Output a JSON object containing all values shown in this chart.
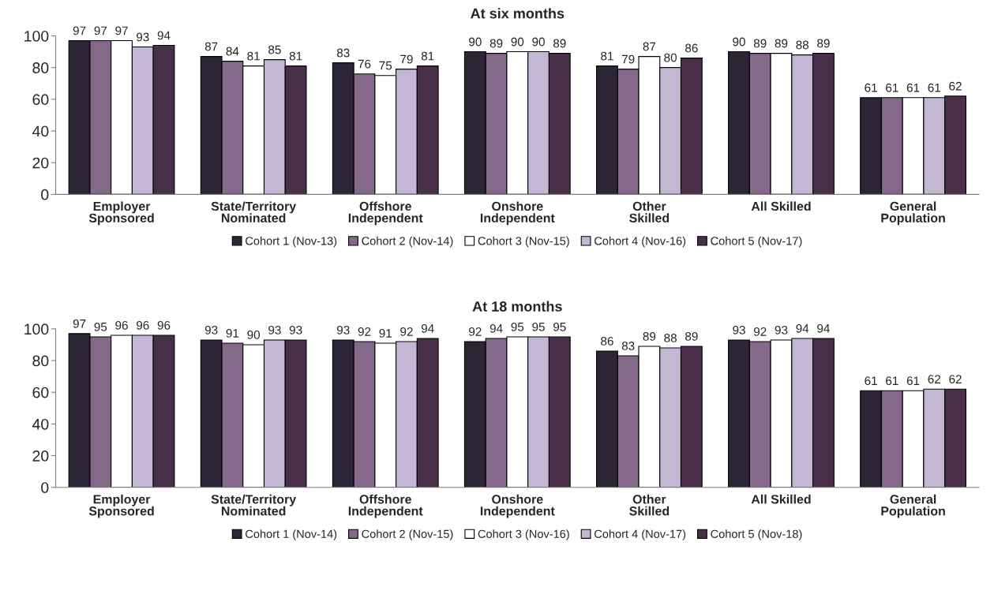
{
  "chart_data": [
    {
      "type": "bar",
      "title": "At six months",
      "categories": [
        "Employer\nSponsored",
        "State/Territory\nNominated",
        "Offshore\nIndependent",
        "Onshore\nIndependent",
        "Other\nSkilled",
        "All Skilled",
        "General\nPopulation"
      ],
      "ylim": [
        0,
        100
      ],
      "yticks": [
        0,
        20,
        40,
        60,
        80,
        100
      ],
      "grid": false,
      "legend": "bottom",
      "data_labels": true,
      "series": [
        {
          "name": "Cohort 1 (Nov-13)",
          "color": "#2b2536",
          "values": [
            97,
            87,
            83,
            90,
            81,
            90,
            61
          ]
        },
        {
          "name": "Cohort 2 (Nov-14)",
          "color": "#85698a",
          "values": [
            97,
            84,
            76,
            89,
            79,
            89,
            61
          ]
        },
        {
          "name": "Cohort 3 (Nov-15)",
          "color": "#ffffff",
          "values": [
            97,
            81,
            75,
            90,
            87,
            89,
            61
          ]
        },
        {
          "name": "Cohort 4 (Nov-16)",
          "color": "#c3b7d3",
          "values": [
            93,
            85,
            79,
            90,
            80,
            88,
            61
          ]
        },
        {
          "name": "Cohort 5 (Nov-17)",
          "color": "#4a2f4a",
          "values": [
            94,
            81,
            81,
            89,
            86,
            89,
            62
          ]
        }
      ]
    },
    {
      "type": "bar",
      "title": "At 18 months",
      "categories": [
        "Employer\nSponsored",
        "State/Territory\nNominated",
        "Offshore\nIndependent",
        "Onshore\nIndependent",
        "Other\nSkilled",
        "All Skilled",
        "General\nPopulation"
      ],
      "ylim": [
        0,
        100
      ],
      "yticks": [
        0,
        20,
        40,
        60,
        80,
        100
      ],
      "grid": false,
      "legend": "bottom",
      "data_labels": true,
      "series": [
        {
          "name": "Cohort 1 (Nov-14)",
          "color": "#2b2536",
          "values": [
            97,
            93,
            93,
            92,
            86,
            93,
            61
          ]
        },
        {
          "name": "Cohort 2 (Nov-15)",
          "color": "#85698a",
          "values": [
            95,
            91,
            92,
            94,
            83,
            92,
            61
          ]
        },
        {
          "name": "Cohort 3 (Nov-16)",
          "color": "#ffffff",
          "values": [
            96,
            90,
            91,
            95,
            89,
            93,
            61
          ]
        },
        {
          "name": "Cohort 4 (Nov-17)",
          "color": "#c3b7d3",
          "values": [
            96,
            93,
            92,
            95,
            88,
            94,
            62
          ]
        },
        {
          "name": "Cohort 5 (Nov-18)",
          "color": "#4a2f4a",
          "values": [
            96,
            93,
            94,
            95,
            89,
            94,
            62
          ]
        }
      ]
    }
  ]
}
